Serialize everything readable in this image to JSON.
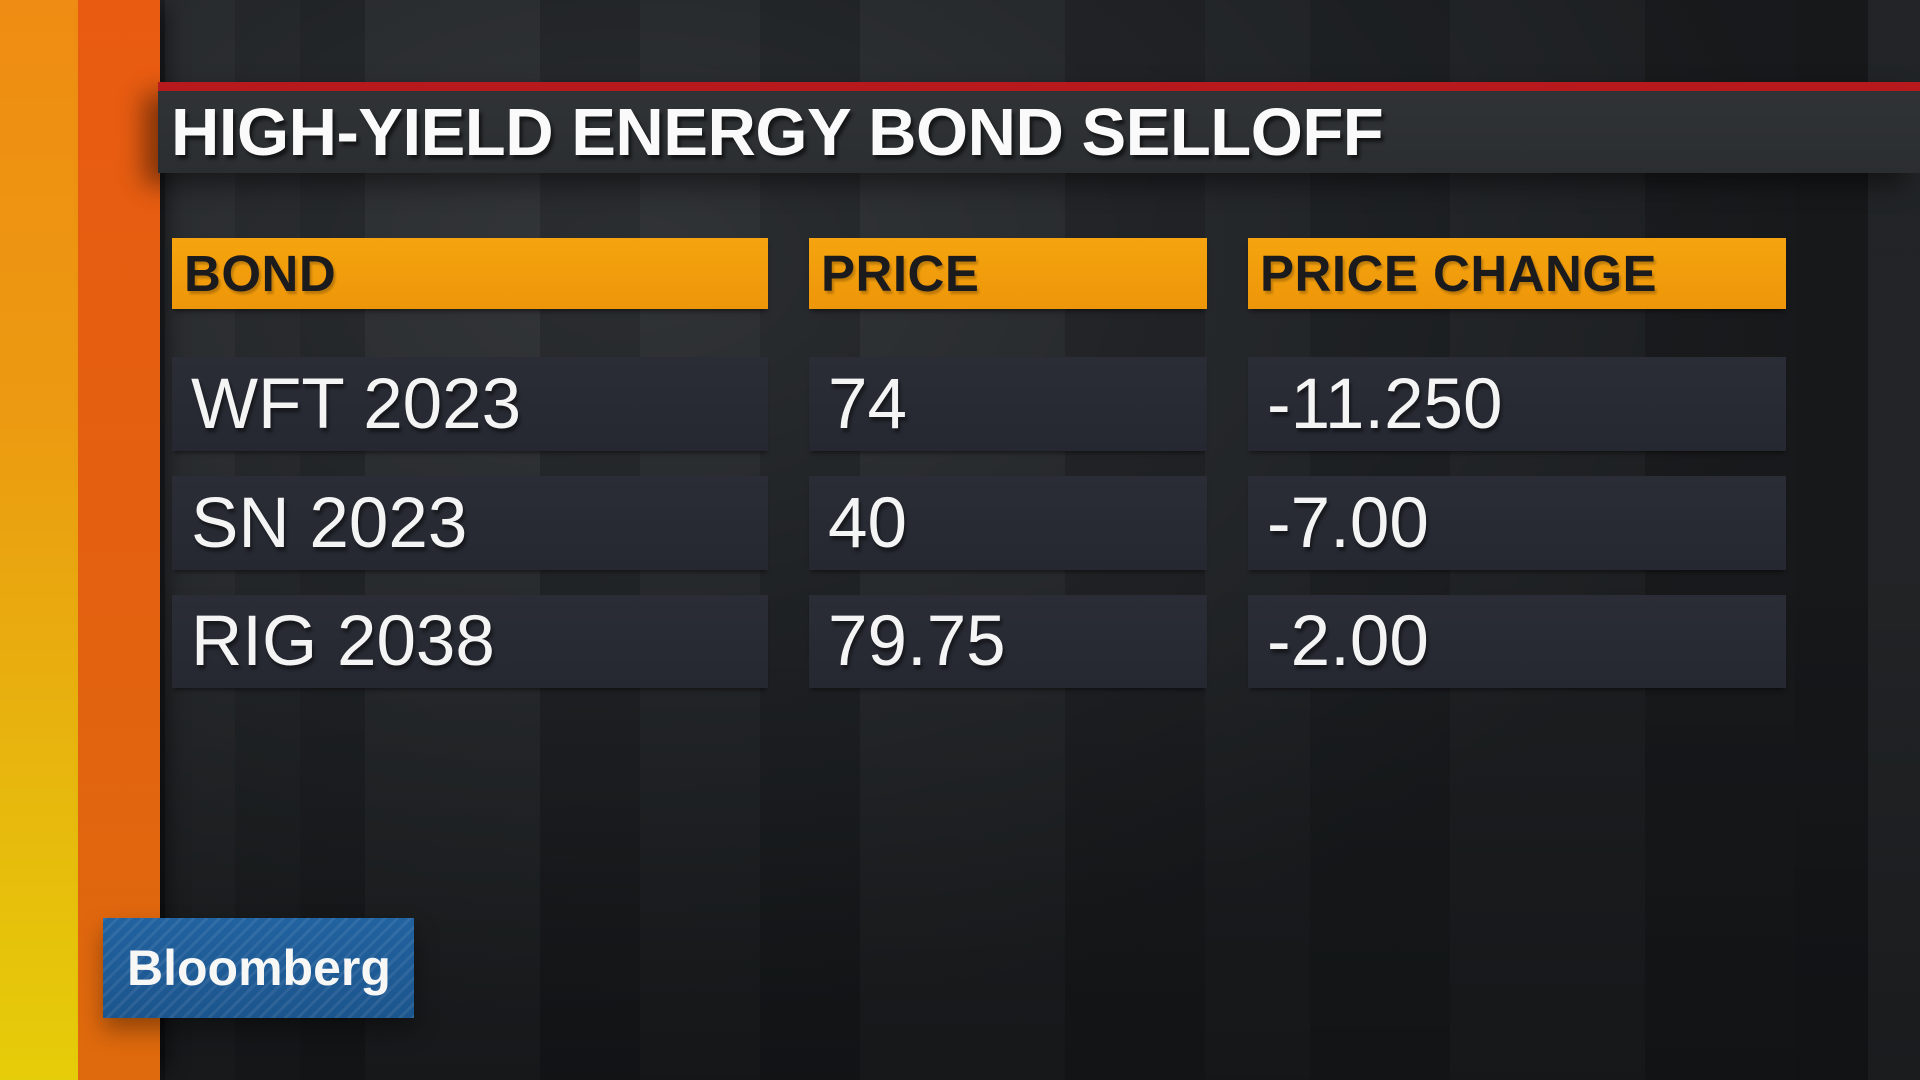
{
  "headline": {
    "title": "HIGH-YIELD ENERGY BOND SELLOFF"
  },
  "table": {
    "columns": [
      "BOND",
      "PRICE",
      "PRICE CHANGE"
    ],
    "rows": [
      {
        "bond": "WFT 2023",
        "price": "74",
        "price_change": "-11.250"
      },
      {
        "bond": "SN 2023",
        "price": "40",
        "price_change": "-7.00"
      },
      {
        "bond": "RIG 2038",
        "price": "79.75",
        "price_change": "-2.00"
      }
    ]
  },
  "branding": {
    "logo_text": "Bloomberg"
  },
  "colors": {
    "header_orange": "#f39d0b",
    "headline_red": "#b8191d",
    "logo_blue": "#1e5b97",
    "row_background": "#272a32",
    "panel_background": "#2e3134",
    "text_light": "#f4f4f4",
    "header_text_dark": "#1b1b1d",
    "accent_bar_yellow": "#e6cd09",
    "accent_bar_orange": "#e95b11"
  },
  "chart_data": {
    "type": "table",
    "title": "HIGH-YIELD ENERGY BOND SELLOFF",
    "columns": [
      "BOND",
      "PRICE",
      "PRICE CHANGE"
    ],
    "rows": [
      [
        "WFT 2023",
        74,
        -11.25
      ],
      [
        "SN 2023",
        40,
        -7.0
      ],
      [
        "RIG 2038",
        79.75,
        -2.0
      ]
    ],
    "layout_hints": {
      "grid": false,
      "legend": "none",
      "style": "tv-broadcast-graphic"
    }
  }
}
